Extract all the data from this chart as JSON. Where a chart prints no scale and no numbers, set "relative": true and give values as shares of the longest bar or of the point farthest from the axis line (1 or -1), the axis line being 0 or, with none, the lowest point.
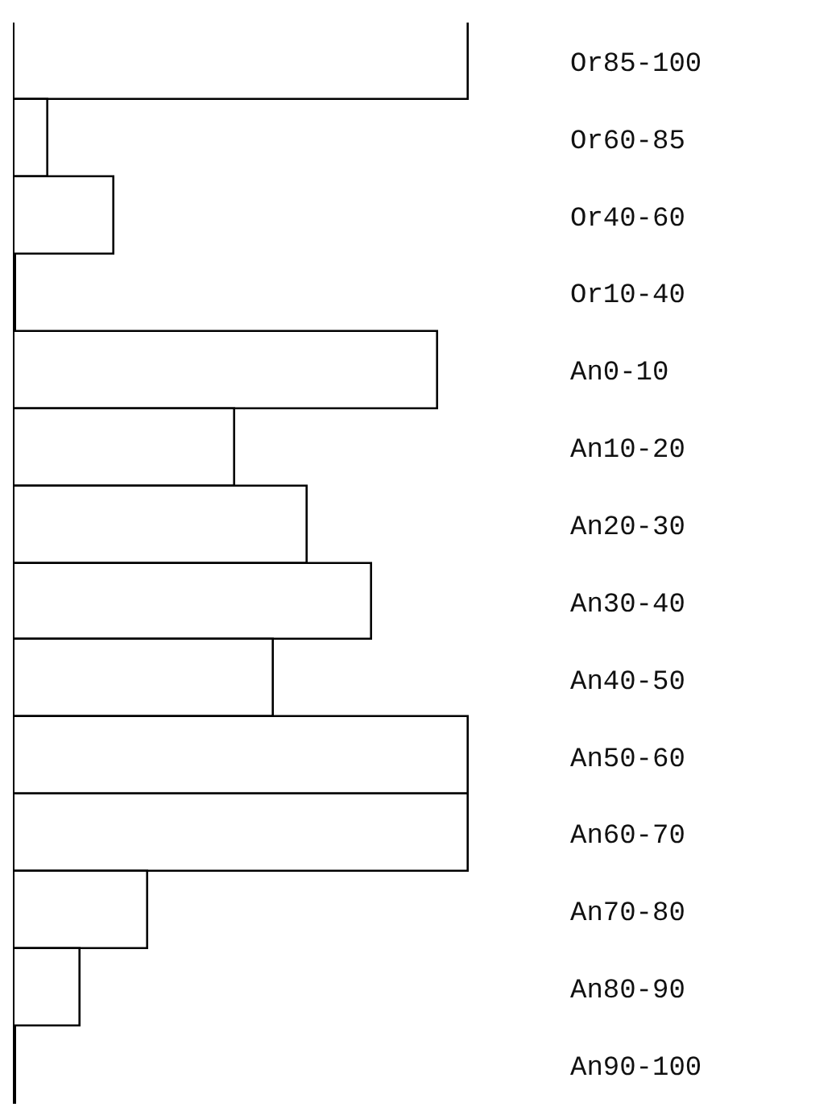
{
  "chart_data": {
    "type": "bar",
    "orientation": "horizontal",
    "relative": true,
    "categories": [
      "Or85-100",
      "Or60-85",
      "Or40-60",
      "Or10-40",
      "An0-10",
      "An10-20",
      "An20-30",
      "An30-40",
      "An40-50",
      "An50-60",
      "An60-70",
      "An70-80",
      "An80-90",
      "An90-100"
    ],
    "values": [
      1,
      0.074,
      0.22,
      0,
      0.934,
      0.485,
      0.647,
      0.787,
      0.57,
      1,
      1,
      0.294,
      0.147,
      0
    ],
    "color": "#ffffff"
  }
}
